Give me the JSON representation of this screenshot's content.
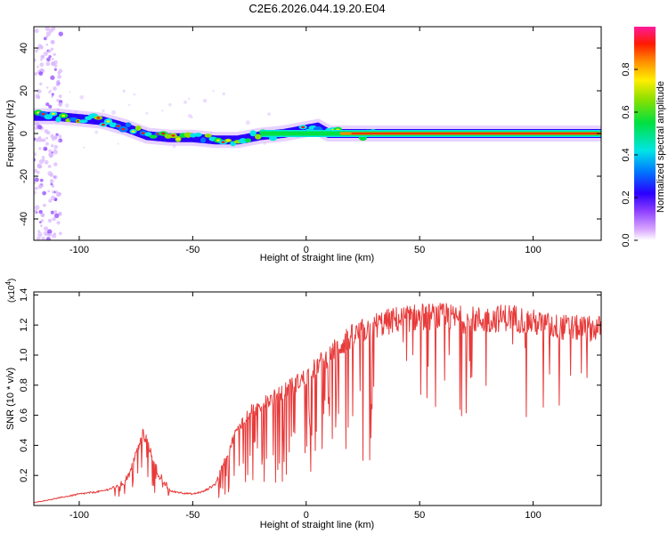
{
  "title": "C2E6.2026.044.19.20.E04",
  "chart_data": [
    {
      "type": "heatmap",
      "xlabel": "Height of straight line (km)",
      "ylabel": "Frequency (Hz)",
      "xlim": [
        -120,
        130
      ],
      "ylim": [
        -50,
        50
      ],
      "xticks": [
        -100,
        -50,
        0,
        50,
        100
      ],
      "yticks": [
        -40,
        -20,
        0,
        20,
        40
      ],
      "ridge": {
        "x": [
          -120,
          -110,
          -100,
          -90,
          -80,
          -70,
          -60,
          -50,
          -40,
          -30,
          -20,
          -10,
          0,
          5,
          10,
          20,
          30,
          50,
          80,
          100,
          130
        ],
        "y": [
          8,
          8,
          7,
          6,
          3,
          -1,
          -2,
          -2,
          -3,
          -3,
          -1,
          0,
          2,
          3,
          0,
          0,
          0,
          0,
          0,
          0,
          0
        ]
      },
      "colorbar": {
        "label": "Normalized spectral amplitude",
        "range": [
          0,
          1
        ],
        "ticks": [
          0.0,
          0.2,
          0.4,
          0.6,
          0.8
        ]
      }
    },
    {
      "type": "line",
      "xlabel": "Height of straight line (km)",
      "ylabel": "SNR (10 * v/v)",
      "scale_label": "(x10",
      "scale_exponent": "4",
      "xlim": [
        -120,
        130
      ],
      "ylim": [
        0,
        1.42
      ],
      "xticks": [
        -100,
        -50,
        0,
        50,
        100
      ],
      "yticks": [
        0.2,
        0.4,
        0.6,
        0.8,
        1.0,
        1.2,
        1.4
      ],
      "color": "#e83a3a",
      "envelope": {
        "x": [
          -120,
          -110,
          -100,
          -90,
          -80,
          -75,
          -72,
          -70,
          -65,
          -60,
          -50,
          -45,
          -40,
          -35,
          -30,
          -25,
          -20,
          -15,
          -10,
          -5,
          0,
          5,
          10,
          15,
          20,
          25,
          30,
          40,
          50,
          60,
          70,
          80,
          90,
          100,
          110,
          120,
          130
        ],
        "y": [
          0.02,
          0.05,
          0.08,
          0.1,
          0.15,
          0.35,
          0.5,
          0.45,
          0.2,
          0.1,
          0.08,
          0.1,
          0.15,
          0.35,
          0.55,
          0.65,
          0.7,
          0.75,
          0.8,
          0.85,
          0.9,
          0.98,
          1.05,
          1.12,
          1.18,
          1.22,
          1.26,
          1.3,
          1.32,
          1.32,
          1.3,
          1.3,
          1.32,
          1.28,
          1.25,
          1.24,
          1.24
        ]
      }
    }
  ]
}
